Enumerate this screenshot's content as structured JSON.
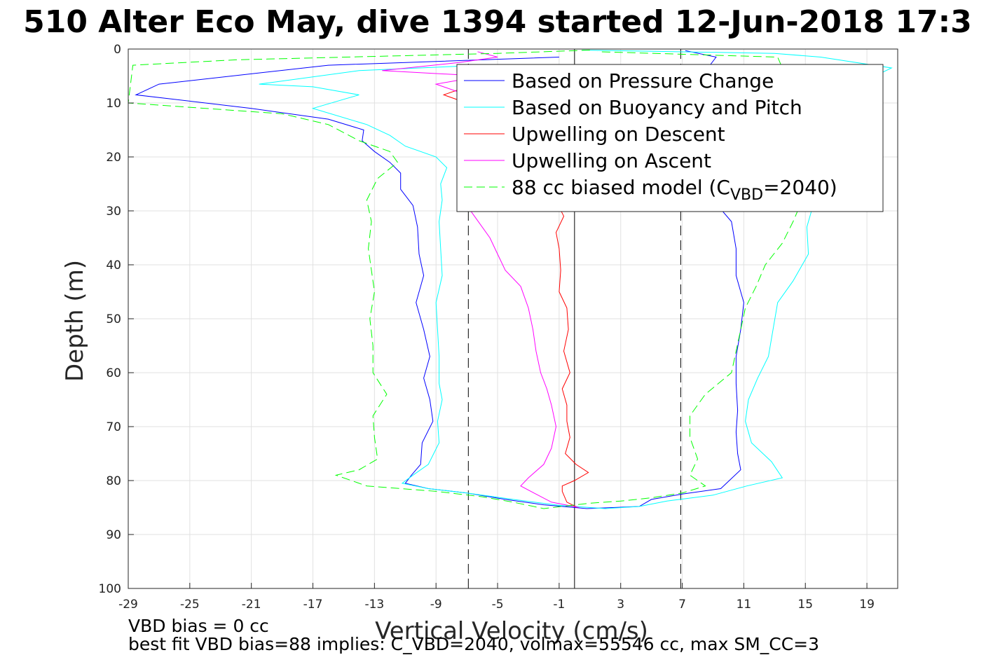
{
  "chart_data": {
    "type": "line",
    "title": "510 Alter Eco May, dive 1394 started 12-Jun-2018 17:3",
    "xlabel": "Vertical Velocity (cm/s)",
    "ylabel": "Depth (m)",
    "xlim": [
      -29,
      21
    ],
    "ylim": [
      0,
      100
    ],
    "y_reversed": true,
    "grid": true,
    "legend_position": "top-right",
    "xticks": [
      -29,
      -25,
      -21,
      -17,
      -13,
      -9,
      -5,
      -1,
      3,
      7,
      11,
      15,
      19
    ],
    "yticks": [
      0,
      10,
      20,
      30,
      40,
      50,
      60,
      70,
      80,
      90,
      100
    ],
    "colors": {
      "pressure": "#0000ff",
      "buoyancy": "#00ffff",
      "upwelling_descent": "#ff0000",
      "upwelling_ascent": "#ff00ff",
      "model": "#00ff00",
      "reference": "#000000"
    },
    "reference_lines": [
      {
        "x": 0,
        "style": "solid"
      },
      {
        "x": -6.9,
        "style": "dashed"
      },
      {
        "x": 6.9,
        "style": "dashed"
      }
    ],
    "series": [
      {
        "name": "Based on Pressure Change",
        "key": "pressure",
        "style": "solid",
        "points": [
          [
            -1,
            1.5
          ],
          [
            -6,
            2
          ],
          [
            -16,
            3
          ],
          [
            -27,
            6.5
          ],
          [
            -28.5,
            8.5
          ],
          [
            -21,
            11
          ],
          [
            -16,
            13
          ],
          [
            -13.7,
            15
          ],
          [
            -13.8,
            17
          ],
          [
            -13,
            19
          ],
          [
            -12,
            21
          ],
          [
            -11.3,
            23
          ],
          [
            -11.3,
            26
          ],
          [
            -10.5,
            29
          ],
          [
            -10.2,
            33
          ],
          [
            -10.1,
            38
          ],
          [
            -9.8,
            42
          ],
          [
            -10.3,
            47
          ],
          [
            -9.8,
            52
          ],
          [
            -9.4,
            57
          ],
          [
            -9.8,
            61
          ],
          [
            -9.4,
            65
          ],
          [
            -9.2,
            69
          ],
          [
            -9.9,
            73
          ],
          [
            -10,
            77
          ],
          [
            -10.6,
            79
          ],
          [
            -11,
            80.5
          ],
          [
            -9.5,
            81.5
          ],
          [
            -7,
            82.3
          ],
          [
            -4.5,
            83.5
          ],
          [
            -2,
            84.5
          ],
          [
            0.8,
            85.2
          ],
          [
            4.2,
            84.8
          ],
          [
            5,
            83.5
          ],
          [
            7,
            82.5
          ],
          [
            9.5,
            81.5
          ],
          [
            10.8,
            78
          ],
          [
            10.6,
            75
          ],
          [
            10.5,
            71
          ],
          [
            10.6,
            67
          ],
          [
            10.5,
            62
          ],
          [
            10.5,
            57
          ],
          [
            10.8,
            52
          ],
          [
            11,
            47
          ],
          [
            10.5,
            42
          ],
          [
            10.5,
            37
          ],
          [
            10.2,
            32
          ],
          [
            9.3,
            29
          ],
          [
            9.5,
            25
          ],
          [
            8.3,
            20
          ],
          [
            8.6,
            15
          ],
          [
            9.1,
            10
          ],
          [
            8.9,
            6
          ],
          [
            8.8,
            3
          ],
          [
            9.2,
            1.5
          ],
          [
            7.2,
            0.3
          ]
        ]
      },
      {
        "name": "Based on Buoyancy and Pitch",
        "key": "buoyancy",
        "style": "solid",
        "points": [
          [
            -6,
            3
          ],
          [
            -14,
            4
          ],
          [
            -20.5,
            6.5
          ],
          [
            -17,
            7
          ],
          [
            -14,
            8.5
          ],
          [
            -17,
            11
          ],
          [
            -13.5,
            14
          ],
          [
            -12,
            16
          ],
          [
            -11,
            18
          ],
          [
            -9,
            20
          ],
          [
            -8.3,
            22
          ],
          [
            -8.7,
            25
          ],
          [
            -8.6,
            28
          ],
          [
            -8.8,
            32
          ],
          [
            -8.7,
            37
          ],
          [
            -8.6,
            42
          ],
          [
            -9,
            47
          ],
          [
            -8.9,
            52
          ],
          [
            -8.8,
            57
          ],
          [
            -8.8,
            62
          ],
          [
            -8.6,
            65
          ],
          [
            -8.9,
            69
          ],
          [
            -8.8,
            73
          ],
          [
            -9.5,
            77
          ],
          [
            -10.5,
            79
          ],
          [
            -11.2,
            80.5
          ],
          [
            -9.5,
            81.5
          ],
          [
            -7,
            82.3
          ],
          [
            -4,
            83.5
          ],
          [
            -1,
            84.6
          ],
          [
            2,
            85.2
          ],
          [
            4.2,
            84.8
          ],
          [
            6,
            83.8
          ],
          [
            9,
            82.7
          ],
          [
            11.2,
            81
          ],
          [
            13.5,
            79.5
          ],
          [
            12.8,
            76.5
          ],
          [
            11.5,
            73
          ],
          [
            11.1,
            69
          ],
          [
            11.3,
            65
          ],
          [
            11.9,
            61
          ],
          [
            12.6,
            57
          ],
          [
            12.9,
            52
          ],
          [
            13.2,
            47
          ],
          [
            14.2,
            43
          ],
          [
            15.2,
            38
          ],
          [
            15.1,
            33
          ],
          [
            15.4,
            30
          ],
          [
            16.3,
            25
          ],
          [
            18.2,
            20
          ],
          [
            18.4,
            15
          ],
          [
            17.5,
            10
          ],
          [
            18.8,
            6
          ],
          [
            20.6,
            3.5
          ],
          [
            16,
            1.5
          ],
          [
            13,
            0.8
          ],
          [
            0.5,
            0.2
          ]
        ]
      },
      {
        "name": "Upwelling on Descent",
        "key": "upwelling_descent",
        "style": "solid",
        "points": [
          [
            -4.5,
            5
          ],
          [
            -6,
            6
          ],
          [
            -8.5,
            8.5
          ],
          [
            -7,
            10
          ],
          [
            -5,
            12
          ],
          [
            -4.5,
            15
          ],
          [
            -4.2,
            18
          ],
          [
            -3.8,
            21
          ],
          [
            -2.8,
            24
          ],
          [
            -1.4,
            27
          ],
          [
            -0.7,
            31
          ],
          [
            -1.2,
            34
          ],
          [
            -1,
            37
          ],
          [
            -0.9,
            41
          ],
          [
            -1,
            45
          ],
          [
            -0.5,
            48
          ],
          [
            -0.4,
            52
          ],
          [
            -0.7,
            56
          ],
          [
            -0.3,
            60
          ],
          [
            -0.8,
            63
          ],
          [
            -0.5,
            66
          ],
          [
            -0.5,
            69
          ],
          [
            -0.3,
            72
          ],
          [
            -0.6,
            75
          ],
          [
            0.1,
            77
          ],
          [
            0.9,
            78.5
          ],
          [
            0,
            80
          ],
          [
            -0.8,
            81
          ],
          [
            -0.8,
            82
          ],
          [
            -0.5,
            84
          ],
          [
            0.2,
            85
          ]
        ]
      },
      {
        "name": "Upwelling on Ascent",
        "key": "upwelling_ascent",
        "style": "solid",
        "points": [
          [
            -6.3,
            0.5
          ],
          [
            -5,
            1.5
          ],
          [
            -7.5,
            2.5
          ],
          [
            -12.5,
            4
          ],
          [
            -6,
            5
          ],
          [
            -9,
            6.5
          ],
          [
            -7.5,
            8
          ],
          [
            -6,
            10
          ],
          [
            -6.5,
            12
          ],
          [
            -7,
            15
          ],
          [
            -7.5,
            18
          ],
          [
            -7,
            21
          ],
          [
            -6,
            24
          ],
          [
            -7.5,
            27
          ],
          [
            -6.5,
            31
          ],
          [
            -5.5,
            35
          ],
          [
            -5,
            38
          ],
          [
            -4.5,
            41
          ],
          [
            -3.5,
            44
          ],
          [
            -3,
            48
          ],
          [
            -2.7,
            52
          ],
          [
            -2.5,
            56
          ],
          [
            -2.2,
            60
          ],
          [
            -1.8,
            63
          ],
          [
            -1.5,
            66
          ],
          [
            -1.2,
            70
          ],
          [
            -1.5,
            74
          ],
          [
            -2,
            77
          ],
          [
            -3,
            79.5
          ],
          [
            -3.5,
            81
          ],
          [
            -2.5,
            82.5
          ],
          [
            -1.5,
            84
          ],
          [
            0.3,
            85
          ]
        ]
      },
      {
        "name": "88 cc biased model (C_VBD=2040)",
        "key": "model",
        "style": "dashed",
        "points": [
          [
            1,
            0.2
          ],
          [
            -5,
            0.8
          ],
          [
            -22,
            2
          ],
          [
            -28.7,
            3
          ],
          [
            -29,
            10
          ],
          [
            -19,
            12
          ],
          [
            -16,
            14
          ],
          [
            -14,
            17
          ],
          [
            -12,
            19
          ],
          [
            -11.5,
            21
          ],
          [
            -12.8,
            24
          ],
          [
            -13.5,
            28
          ],
          [
            -13.2,
            32
          ],
          [
            -13.4,
            37
          ],
          [
            -13.2,
            41
          ],
          [
            -13,
            45
          ],
          [
            -13.3,
            50
          ],
          [
            -13.1,
            55
          ],
          [
            -13.1,
            60
          ],
          [
            -12.2,
            64
          ],
          [
            -13.1,
            68
          ],
          [
            -13,
            72
          ],
          [
            -12.8,
            76
          ],
          [
            -14,
            78
          ],
          [
            -15.5,
            79
          ],
          [
            -13.5,
            81
          ],
          [
            -9,
            82
          ],
          [
            -6,
            83
          ],
          [
            -4,
            84
          ],
          [
            -2,
            85.2
          ],
          [
            1,
            84.2
          ],
          [
            3,
            83.8
          ],
          [
            5,
            83.2
          ],
          [
            7,
            82.3
          ],
          [
            8.5,
            81
          ],
          [
            7.5,
            79
          ],
          [
            8,
            76
          ],
          [
            7.5,
            72
          ],
          [
            7.5,
            68
          ],
          [
            8.5,
            64
          ],
          [
            10.2,
            60
          ],
          [
            10.5,
            56
          ],
          [
            10.8,
            52
          ],
          [
            11.1,
            48
          ],
          [
            11.8,
            44
          ],
          [
            12.4,
            40
          ],
          [
            13.5,
            36
          ],
          [
            14.2,
            32
          ],
          [
            14.8,
            28
          ],
          [
            16.2,
            25
          ],
          [
            16.5,
            20
          ],
          [
            15.2,
            15
          ],
          [
            14.8,
            10
          ],
          [
            14,
            6
          ],
          [
            13.5,
            3.5
          ],
          [
            13.2,
            1.5
          ],
          [
            1.5,
            0.5
          ]
        ]
      }
    ],
    "legend": [
      {
        "label": "Based on Pressure Change",
        "key": "pressure",
        "style": "solid"
      },
      {
        "label": "Based on Buoyancy and Pitch",
        "key": "buoyancy",
        "style": "solid"
      },
      {
        "label": "Upwelling on Descent",
        "key": "upwelling_descent",
        "style": "solid"
      },
      {
        "label": "Upwelling on Ascent",
        "key": "upwelling_ascent",
        "style": "solid"
      },
      {
        "label": "88 cc biased model (C",
        "sub": "VBD",
        "tail": "=2040)",
        "key": "model",
        "style": "dashed"
      }
    ],
    "annotations": [
      "VBD bias = 0 cc",
      "best fit VBD bias=88 implies: C_VBD=2040, volmax=55546 cc, max SM_CC=3"
    ]
  }
}
